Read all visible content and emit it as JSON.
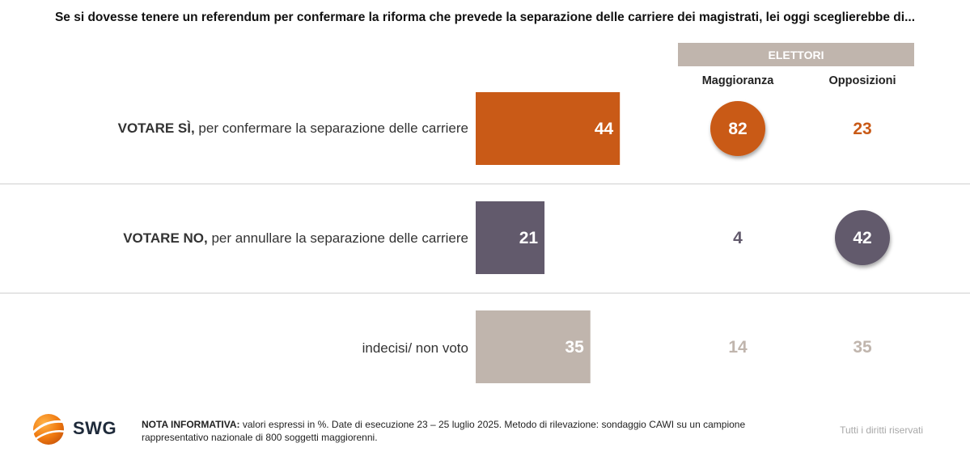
{
  "chart_data": {
    "type": "bar",
    "title": "Se si dovesse tenere un referendum per confermare la riforma che prevede la separazione delle carriere dei magistrati, lei oggi sceglierebbe di...",
    "categories": [
      {
        "bold": "VOTARE SÌ,",
        "rest": " per confermare la separazione delle carriere"
      },
      {
        "bold": "VOTARE NO,",
        "rest": " per annullare la separazione delle carriere"
      },
      {
        "bold": "",
        "rest": "indecisi/ non voto"
      }
    ],
    "values": [
      44,
      21,
      35
    ],
    "colors": [
      "#c95a17",
      "#625a6c",
      "#c0b5ad"
    ],
    "xlim": [
      0,
      100
    ],
    "breakdown": {
      "group_label": "ELETTORI",
      "columns": [
        "Maggioranza",
        "Opposizioni"
      ],
      "values": [
        [
          82,
          23
        ],
        [
          4,
          42
        ],
        [
          14,
          35
        ]
      ],
      "highlight": [
        [
          true,
          false
        ],
        [
          false,
          true
        ],
        [
          false,
          false
        ]
      ]
    }
  },
  "footer": {
    "logo_text": "SWG",
    "nota_label": "NOTA INFORMATIVA:",
    "nota_text": " valori espressi in %. Date di esecuzione 23 – 25 luglio 2025. Metodo di rilevazione: sondaggio CAWI su un campione rappresentativo nazionale di 800 soggetti maggiorenni.",
    "rights": "Tutti i diritti riservati"
  }
}
